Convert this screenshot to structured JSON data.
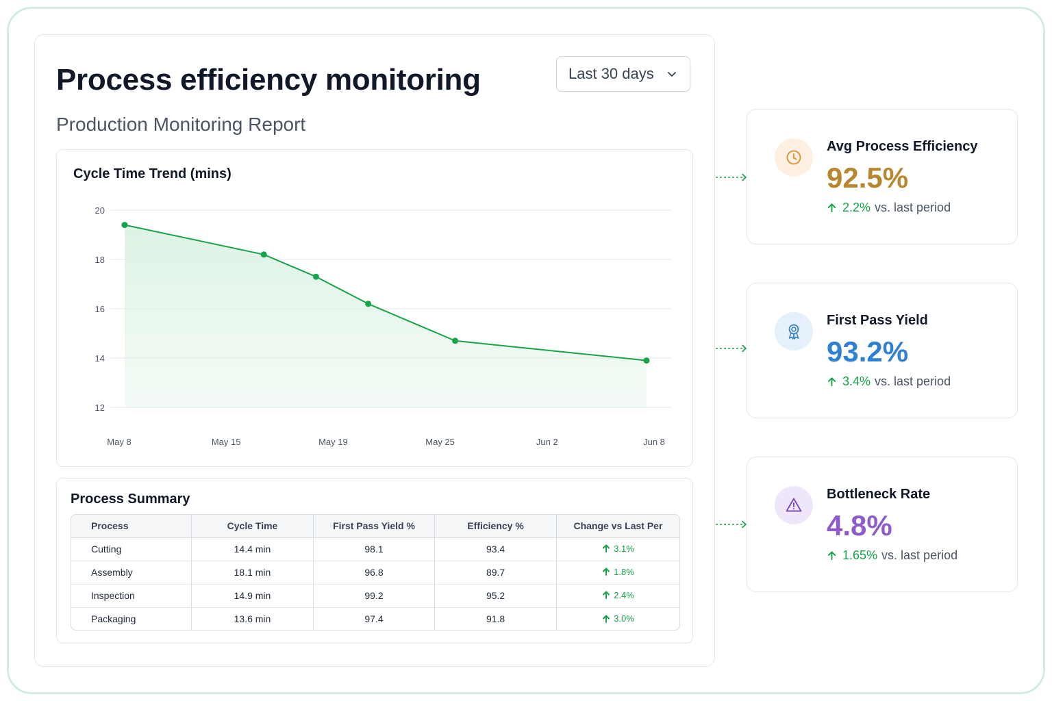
{
  "header": {
    "title": "Process efficiency monitoring",
    "subtitle": "Production Monitoring Report",
    "period_select": {
      "value": "Last 30 days"
    }
  },
  "chart_data": {
    "type": "area",
    "title": "Cycle Time Trend (mins)",
    "xlabel": "",
    "ylabel": "",
    "x_tick_labels": [
      "May 8",
      "May 15",
      "May 19",
      "May 25",
      "Jun 2",
      "Jun 8"
    ],
    "y_ticks": [
      20,
      18,
      16,
      14,
      12
    ],
    "ylim": [
      12,
      20
    ],
    "grid": true,
    "color": "#16a34a",
    "fill_color": "#dcf2e3",
    "points": [
      {
        "x": "May 8",
        "y": 19.4
      },
      {
        "x": "May 16",
        "y": 18.2
      },
      {
        "x": "May 19",
        "y": 17.3
      },
      {
        "x": "May 22",
        "y": 16.2
      },
      {
        "x": "May 27",
        "y": 14.7
      },
      {
        "x": "Jun 7",
        "y": 13.9
      }
    ]
  },
  "summary": {
    "title": "Process Summary",
    "columns": [
      "Process",
      "Cycle Time",
      "First Pass Yield %",
      "Efficiency %",
      "Change vs Last Per"
    ],
    "rows": [
      {
        "process": "Cutting",
        "cycle_time": "14.4 min",
        "fpy": "98.1",
        "efficiency": "93.4",
        "change": "3.1%"
      },
      {
        "process": "Assembly",
        "cycle_time": "18.1 min",
        "fpy": "96.8",
        "efficiency": "89.7",
        "change": "1.8%"
      },
      {
        "process": "Inspection",
        "cycle_time": "14.9 min",
        "fpy": "99.2",
        "efficiency": "95.2",
        "change": "2.4%"
      },
      {
        "process": "Packaging",
        "cycle_time": "13.6 min",
        "fpy": "97.4",
        "efficiency": "91.8",
        "change": "3.0%"
      }
    ]
  },
  "kpis": [
    {
      "label": "Avg Process Efficiency",
      "value": "92.5%",
      "change": "2.2%",
      "change_suffix": "vs. last period",
      "icon": "clock-icon",
      "color": "#b7862f",
      "icon_bg": "#fdf0e3",
      "icon_color": "#d9983a"
    },
    {
      "label": "First Pass Yield",
      "value": "93.2%",
      "change": "3.4%",
      "change_suffix": "vs. last period",
      "icon": "award-ribbon-icon",
      "color": "#2f7fd3",
      "icon_bg": "#e6f0fb",
      "icon_color": "#3b82c4"
    },
    {
      "label": "Bottleneck Rate",
      "value": "4.8%",
      "change": "1.65%",
      "change_suffix": "vs. last period",
      "icon": "warning-triangle-icon",
      "color": "#8e5cc9",
      "icon_bg": "#f0e6fa",
      "icon_color": "#7c4dbf"
    }
  ]
}
